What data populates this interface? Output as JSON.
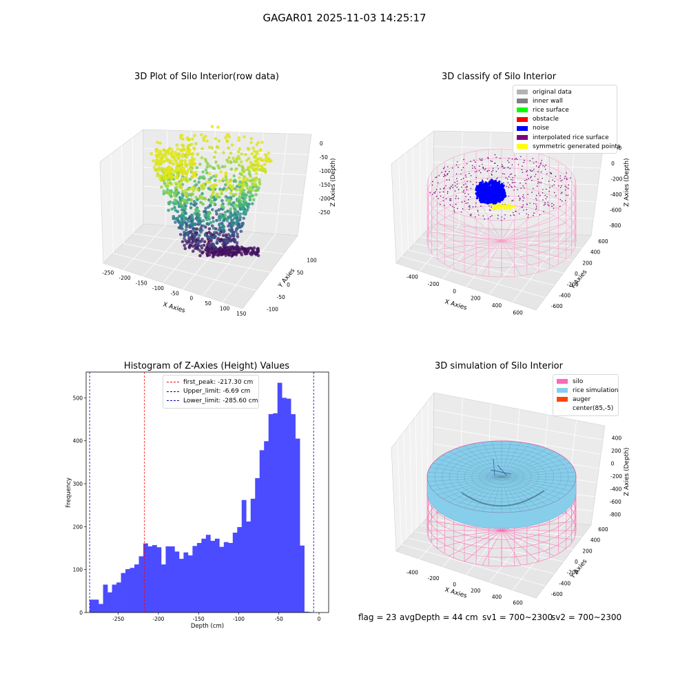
{
  "figure_title": "GAGAR01 2025-11-03 14:25:17",
  "status_bar": {
    "flag": "flag = 23",
    "avg_depth": "avgDepth = 44 cm",
    "sv1": "sv1 = 700~2300",
    "sv2": "sv2 = 700~2300"
  },
  "chart_data": [
    {
      "type": "scatter",
      "title": "3D Plot of Silo Interior(row data)",
      "xlabel": "X Axies",
      "ylabel": "Y Axies",
      "zlabel": "Z Axies (Depth)",
      "xticks": [
        -250,
        -200,
        -150,
        -100,
        -50,
        0,
        50,
        100,
        150
      ],
      "yticks": [
        -100,
        -50,
        0,
        50,
        100
      ],
      "zticks": [
        0,
        -50,
        -100,
        -150,
        -200,
        -250
      ],
      "colormap": "viridis",
      "grid": true
    },
    {
      "type": "scatter",
      "title": "3D classify of Silo Interior",
      "xlabel": "X Axies",
      "ylabel": "Y Axies",
      "zlabel": "Z Axies (Depth)",
      "xticks": [
        -400,
        -200,
        0,
        200,
        400,
        600
      ],
      "yticks": [
        -600,
        -400,
        -200,
        0,
        200,
        400,
        600
      ],
      "zticks": [
        200,
        0,
        -200,
        -400,
        -600,
        -800
      ],
      "legend_position": "top-right",
      "legend": [
        {
          "label": "original data",
          "color": "#b3b3b3"
        },
        {
          "label": "inner wall",
          "color": "#808080"
        },
        {
          "label": "rice surface",
          "color": "#00ff00"
        },
        {
          "label": "obstacle",
          "color": "#ff0000"
        },
        {
          "label": "noise",
          "color": "#0000ff"
        },
        {
          "label": "interpolated rice surface",
          "color": "#800080"
        },
        {
          "label": "symmetric generated points",
          "color": "#ffff00"
        }
      ],
      "grid": true
    },
    {
      "type": "bar",
      "title": "Histogram of Z-Axies (Height) Values",
      "xlabel": "Depth (cm)",
      "ylabel": "Frequency",
      "xlim": [
        -290,
        12
      ],
      "ylim": [
        0,
        560
      ],
      "xticks": [
        -250,
        -200,
        -150,
        -100,
        -50,
        0
      ],
      "yticks": [
        0,
        100,
        200,
        300,
        400,
        500
      ],
      "bar_color": "#4b4bff",
      "bin_start": -285.6,
      "bin_width": 5.568,
      "values": [
        30,
        30,
        20,
        65,
        47,
        65,
        70,
        92,
        101,
        104,
        112,
        131,
        161,
        154,
        157,
        152,
        112,
        154,
        154,
        142,
        125,
        140,
        133,
        155,
        162,
        172,
        181,
        167,
        172,
        153,
        164,
        162,
        186,
        199,
        262,
        212,
        265,
        313,
        378,
        399,
        462,
        464,
        535,
        500,
        498,
        462,
        405,
        156,
        2,
        1
      ],
      "lines": [
        {
          "label": "first_peak: -217.30 cm",
          "x": -217.3,
          "color": "#ff0000"
        },
        {
          "label": "Upper_limit: -6.69 cm",
          "x": -6.69,
          "color": "#0000aa"
        },
        {
          "label": "Lower_limit: -285.60 cm",
          "x": -285.6,
          "color": "#0000aa"
        }
      ],
      "legend_position": "top-center"
    },
    {
      "type": "scatter",
      "title": "3D simulation of Silo Interior",
      "xlabel": "X Axies",
      "ylabel": "Y Axies",
      "zlabel": "Z Axies (Depth)",
      "xticks": [
        -400,
        -200,
        0,
        200,
        400,
        600
      ],
      "yticks": [
        -600,
        -400,
        -200,
        0,
        200,
        400,
        600
      ],
      "zticks": [
        400,
        200,
        0,
        -200,
        -400,
        -600,
        -800
      ],
      "legend_position": "top-right",
      "legend": [
        {
          "label": "silo",
          "color": "#ff69b4"
        },
        {
          "label": "rice simulation",
          "color": "#87ceeb"
        },
        {
          "label": "auger",
          "color": "#ff4500"
        },
        {
          "label": "center(85,-5)",
          "color": "transparent"
        }
      ],
      "grid": true
    }
  ]
}
